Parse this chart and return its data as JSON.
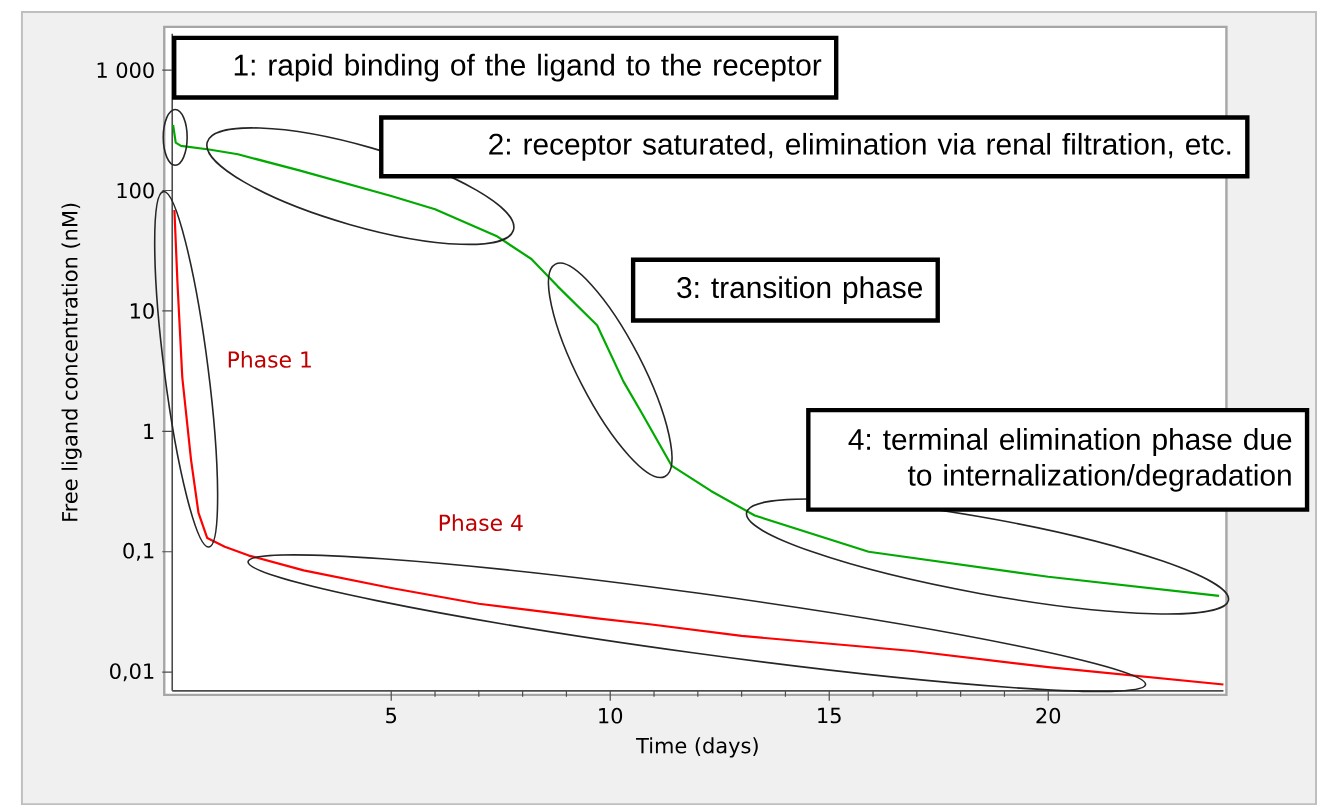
{
  "chart_data": {
    "type": "line",
    "xlabel": "Time (days)",
    "ylabel": "Free ligand concentration (nM)",
    "log": "y",
    "xlim": [
      0,
      24
    ],
    "ylim": [
      0.007,
      2000
    ],
    "xticks": [
      5,
      10,
      15,
      20
    ],
    "yticks": [
      {
        "value": 1000,
        "label": "1 000"
      },
      100,
      10,
      1,
      {
        "value": 0.1,
        "label": "0,1"
      },
      {
        "value": 0.01,
        "label": "0,01"
      }
    ],
    "series": [
      {
        "color": "#00aa00",
        "x": [
          0.02,
          0.08,
          0.2,
          0.84,
          1.5,
          2.9,
          5,
          6,
          7.4,
          8.2,
          8.8,
          9.7,
          10.3,
          10.7,
          11.4,
          12.3,
          13.3,
          15.9,
          20,
          23.9
        ],
        "values": [
          350,
          250,
          235,
          219,
          200,
          147,
          90,
          70,
          42,
          27,
          16,
          7.6,
          2.6,
          1.46,
          0.52,
          0.32,
          0.2,
          0.1,
          0.062,
          0.043
        ]
      },
      {
        "color": "#ff0000",
        "x": [
          0.05,
          0.12,
          0.23,
          0.43,
          0.6,
          0.8,
          1.2,
          1.75,
          3,
          5,
          7,
          9.7,
          10.9,
          13,
          16.9,
          20,
          24
        ],
        "values": [
          69,
          17,
          2.8,
          0.58,
          0.21,
          0.13,
          0.11,
          0.093,
          0.07,
          0.05,
          0.037,
          0.028,
          0.025,
          0.02,
          0.015,
          0.011,
          0.0079
        ]
      }
    ],
    "annotations": [
      "1: rapid binding of the ligand to the receptor",
      "2: receptor saturated, elimination via renal filtration, etc.",
      "3: transition phase",
      "4: terminal elimination phase due to internalization/degradation",
      "Phase 1",
      "Phase 4"
    ]
  }
}
